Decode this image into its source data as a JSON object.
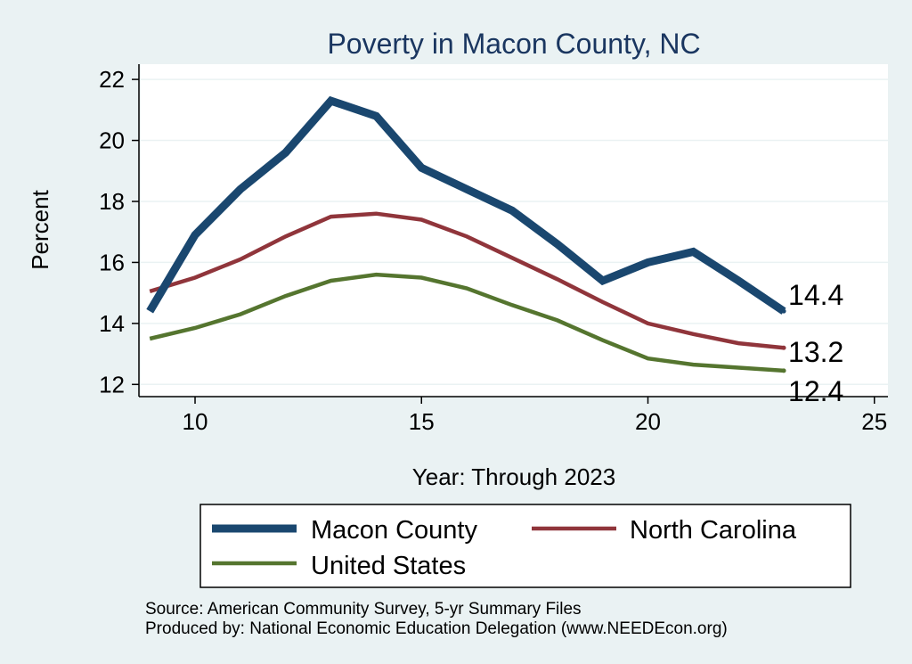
{
  "chart_data": {
    "type": "line",
    "title": "Poverty in Macon County, NC",
    "xlabel": "Year: Through 2023",
    "ylabel": "Percent",
    "xlim": [
      8.8,
      25.3
    ],
    "ylim": [
      11.6,
      22.5
    ],
    "xticks": [
      10,
      15,
      20,
      25
    ],
    "yticks": [
      12,
      14,
      16,
      18,
      20,
      22
    ],
    "x": [
      9,
      10,
      11,
      12,
      13,
      14,
      15,
      16,
      17,
      18,
      19,
      20,
      21,
      22,
      23
    ],
    "series": [
      {
        "name": "Macon County",
        "color": "#1a476f",
        "values": [
          14.4,
          16.9,
          18.4,
          19.6,
          21.3,
          20.8,
          19.1,
          18.4,
          17.7,
          16.6,
          15.4,
          16.0,
          16.35,
          15.4,
          14.4
        ],
        "end_label": "14.4"
      },
      {
        "name": "North Carolina",
        "color": "#90353b",
        "values": [
          15.05,
          15.5,
          16.1,
          16.85,
          17.5,
          17.6,
          17.4,
          16.85,
          16.15,
          15.45,
          14.7,
          14.0,
          13.65,
          13.35,
          13.2
        ],
        "end_label": "13.2"
      },
      {
        "name": "United States",
        "color": "#55752f",
        "values": [
          13.5,
          13.85,
          14.3,
          14.9,
          15.4,
          15.6,
          15.5,
          15.15,
          14.6,
          14.1,
          13.45,
          12.85,
          12.65,
          12.55,
          12.45
        ],
        "end_label": "12.4"
      }
    ],
    "legend": {
      "position": "bottom"
    },
    "grid": true
  },
  "source": {
    "line1": "Source: American Community Survey, 5-yr Summary Files",
    "line2": "Produced by: National Economic Education Delegation (www.NEEDEcon.org)"
  }
}
